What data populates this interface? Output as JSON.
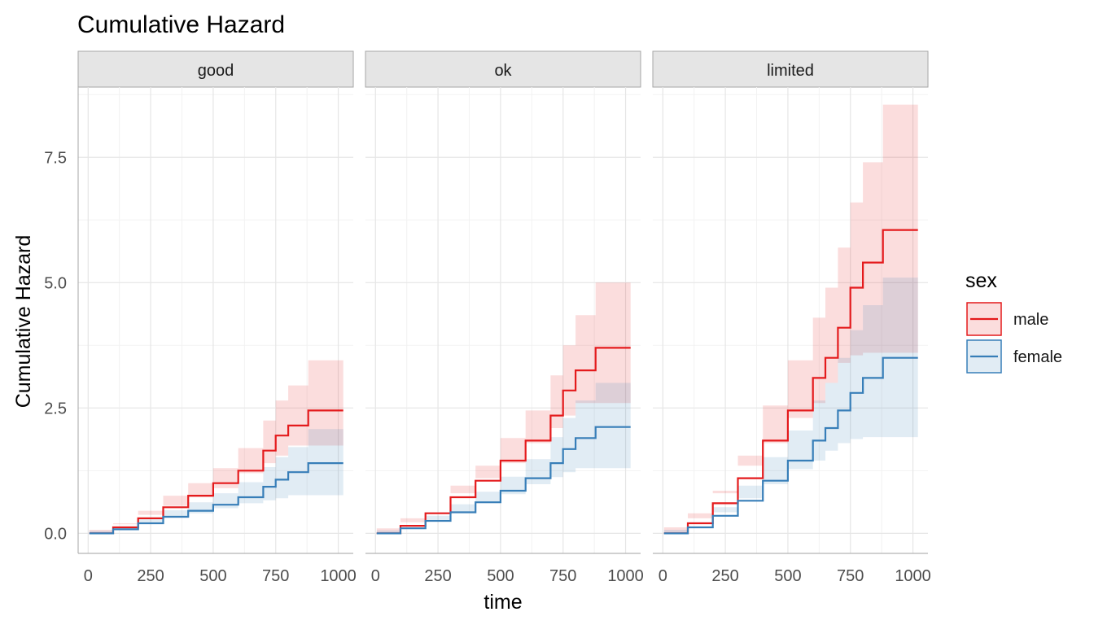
{
  "colors": {
    "male": "#e41a1c",
    "female": "#377eb8"
  },
  "chart_data": {
    "type": "line",
    "title": "Cumulative Hazard",
    "xlabel": "time",
    "ylabel": "Cumulative Hazard",
    "xlim": [
      -40,
      1060
    ],
    "ylim": [
      -0.4,
      8.9
    ],
    "x_ticks": [
      0,
      250,
      500,
      750,
      1000
    ],
    "x_tick_labels": [
      "0",
      "250",
      "500",
      "750",
      "1000"
    ],
    "y_ticks": [
      0,
      2.5,
      5,
      7.5
    ],
    "y_tick_labels": [
      "0.0",
      "2.5",
      "5.0",
      "7.5"
    ],
    "grid": true,
    "legend": {
      "title": "sex",
      "position": "right",
      "entries": [
        "male",
        "female"
      ]
    },
    "panels": [
      {
        "label": "good",
        "series": [
          {
            "name": "male",
            "x": [
              5,
              100,
              200,
              300,
              400,
              500,
              600,
              700,
              750,
              800,
              880,
              1020
            ],
            "y": [
              0,
              0.12,
              0.3,
              0.52,
              0.75,
              1.0,
              1.25,
              1.65,
              1.95,
              2.15,
              2.45,
              2.45
            ],
            "lower": [
              0,
              0.07,
              0.2,
              0.37,
              0.55,
              0.72,
              0.9,
              1.2,
              1.4,
              1.55,
              1.75,
              1.75
            ],
            "upper": [
              0,
              0.18,
              0.45,
              0.75,
              1.0,
              1.3,
              1.7,
              2.25,
              2.65,
              2.95,
              3.45,
              3.45
            ]
          },
          {
            "name": "female",
            "x": [
              5,
              100,
              200,
              300,
              400,
              500,
              600,
              700,
              750,
              800,
              880,
              1020
            ],
            "y": [
              0,
              0.08,
              0.2,
              0.33,
              0.45,
              0.57,
              0.72,
              0.93,
              1.07,
              1.22,
              1.4,
              1.4
            ],
            "lower": [
              0,
              0.05,
              0.12,
              0.22,
              0.31,
              0.4,
              0.5,
              0.6,
              0.66,
              0.7,
              0.76,
              0.76
            ],
            "upper": [
              0,
              0.12,
              0.28,
              0.46,
              0.62,
              0.8,
              1.02,
              1.32,
              1.52,
              1.72,
              2.08,
              2.08
            ]
          }
        ]
      },
      {
        "label": "ok",
        "series": [
          {
            "name": "male",
            "x": [
              5,
              100,
              200,
              300,
              400,
              500,
              600,
              700,
              750,
              800,
              880,
              1020
            ],
            "y": [
              0,
              0.15,
              0.4,
              0.72,
              1.05,
              1.45,
              1.85,
              2.35,
              2.85,
              3.25,
              3.7,
              3.7
            ],
            "lower": [
              0,
              0.1,
              0.3,
              0.55,
              0.8,
              1.1,
              1.4,
              1.8,
              2.1,
              2.35,
              2.6,
              2.6
            ],
            "upper": [
              0,
              0.22,
              0.55,
              0.95,
              1.35,
              1.9,
              2.45,
              3.15,
              3.75,
              4.35,
              5.0,
              5.0
            ]
          },
          {
            "name": "female",
            "x": [
              5,
              100,
              200,
              300,
              400,
              500,
              600,
              700,
              750,
              800,
              880,
              1020
            ],
            "y": [
              0,
              0.1,
              0.25,
              0.42,
              0.62,
              0.85,
              1.1,
              1.4,
              1.68,
              1.9,
              2.12,
              2.12
            ],
            "lower": [
              0,
              0.06,
              0.16,
              0.28,
              0.43,
              0.6,
              0.78,
              0.98,
              1.12,
              1.22,
              1.3,
              1.3
            ],
            "upper": [
              0,
              0.14,
              0.35,
              0.58,
              0.83,
              1.13,
              1.48,
              1.92,
              2.3,
              2.65,
              3.0,
              3.0
            ]
          }
        ]
      },
      {
        "label": "limited",
        "series": [
          {
            "name": "male",
            "x": [
              5,
              100,
              200,
              300,
              400,
              500,
              600,
              650,
              700,
              750,
              800,
              880,
              1020
            ],
            "y": [
              0,
              0.2,
              0.6,
              1.1,
              1.85,
              2.45,
              3.1,
              3.5,
              4.1,
              4.9,
              5.4,
              6.05,
              6.05
            ],
            "lower": [
              0,
              0.12,
              0.4,
              0.8,
              1.35,
              1.8,
              2.3,
              2.6,
              3.0,
              3.4,
              3.55,
              3.6,
              3.6
            ],
            "upper": [
              0,
              0.3,
              0.85,
              1.55,
              2.55,
              3.45,
              4.3,
              4.9,
              5.7,
              6.6,
              7.4,
              8.55,
              8.55
            ]
          },
          {
            "name": "female",
            "x": [
              5,
              100,
              200,
              300,
              400,
              500,
              600,
              650,
              700,
              750,
              800,
              880,
              1020
            ],
            "y": [
              0,
              0.12,
              0.35,
              0.65,
              1.05,
              1.45,
              1.85,
              2.1,
              2.45,
              2.8,
              3.1,
              3.5,
              3.5
            ],
            "lower": [
              0,
              0.07,
              0.22,
              0.42,
              0.7,
              0.98,
              1.28,
              1.45,
              1.65,
              1.8,
              1.88,
              1.92,
              1.92
            ],
            "upper": [
              0,
              0.2,
              0.52,
              0.95,
              1.52,
              2.05,
              2.65,
              3.0,
              3.5,
              4.05,
              4.55,
              5.1,
              5.1
            ]
          }
        ]
      }
    ]
  }
}
